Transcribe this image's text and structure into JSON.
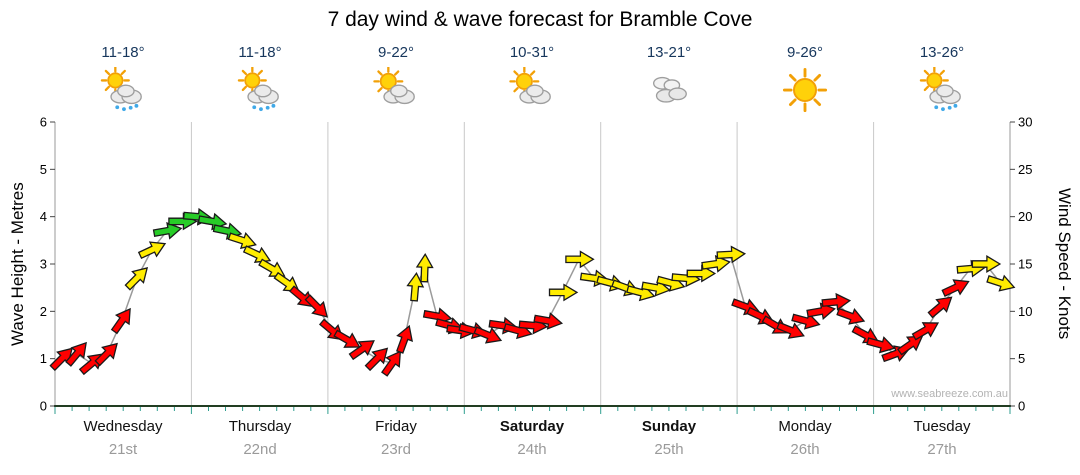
{
  "title": "7 day wind & wave forecast for Bramble Cove",
  "watermark": "www.seabreeze.com.au",
  "axes": {
    "left_label": "Wave Height - Metres",
    "right_label": "Wind Speed - Knots"
  },
  "days": [
    {
      "name": "Wednesday",
      "date": "21st",
      "temp": "11-18°",
      "icon": "sun-cloud-rain",
      "bold": false
    },
    {
      "name": "Thursday",
      "date": "22nd",
      "temp": "11-18°",
      "icon": "sun-cloud-rain",
      "bold": false
    },
    {
      "name": "Friday",
      "date": "23rd",
      "temp": "9-22°",
      "icon": "sun-cloud",
      "bold": false
    },
    {
      "name": "Saturday",
      "date": "24th",
      "temp": "10-31°",
      "icon": "sun-cloud",
      "bold": true
    },
    {
      "name": "Sunday",
      "date": "25th",
      "temp": "13-21°",
      "icon": "cloud",
      "bold": true
    },
    {
      "name": "Monday",
      "date": "26th",
      "temp": "9-26°",
      "icon": "sun",
      "bold": false
    },
    {
      "name": "Tuesday",
      "date": "27th",
      "temp": "13-26°",
      "icon": "sun-cloud-rain",
      "bold": false
    }
  ],
  "chart_data": {
    "type": "line",
    "title": "7 day wind & wave forecast for Bramble Cove",
    "x_axis": "time across 7 days, arrows approximately 3-hourly; d = day offset from start of Wednesday",
    "y_left": {
      "label": "Wave Height - Metres",
      "range": [
        0,
        6
      ],
      "ticks": [
        0,
        1,
        2,
        3,
        4,
        5,
        6
      ]
    },
    "y_right": {
      "label": "Wind Speed - Knots",
      "range": [
        0,
        30
      ],
      "ticks": [
        0,
        5,
        10,
        15,
        20,
        25,
        30
      ]
    },
    "scale_relation": "single trace read against both axes; 1 metre aligns with 5 knots",
    "rot_convention": "arrow heading in degrees clockwise from pointing right (east); negative = upward",
    "wind_strength_colors": {
      "red": "#ff0000",
      "yellow": "#ffec00",
      "green": "#27cc27"
    },
    "line_color": "#9a9a9a",
    "grid_color": "#c8c8c8",
    "points": [
      {
        "d": 0.05,
        "kn": 5,
        "c": "red",
        "rot": -45
      },
      {
        "d": 0.16,
        "kn": 5.5,
        "c": "red",
        "rot": -50
      },
      {
        "d": 0.27,
        "kn": 4.5,
        "c": "red",
        "rot": -40
      },
      {
        "d": 0.38,
        "kn": 5.5,
        "c": "red",
        "rot": -45
      },
      {
        "d": 0.49,
        "kn": 9,
        "c": "red",
        "rot": -55
      },
      {
        "d": 0.6,
        "kn": 13.5,
        "c": "yellow",
        "rot": -45
      },
      {
        "d": 0.71,
        "kn": 16.5,
        "c": "yellow",
        "rot": -25
      },
      {
        "d": 0.82,
        "kn": 18.5,
        "c": "green",
        "rot": -10
      },
      {
        "d": 0.93,
        "kn": 19.5,
        "c": "green",
        "rot": 0
      },
      {
        "d": 1.04,
        "kn": 20,
        "c": "green",
        "rot": 5
      },
      {
        "d": 1.15,
        "kn": 19.5,
        "c": "green",
        "rot": 10
      },
      {
        "d": 1.26,
        "kn": 18.5,
        "c": "green",
        "rot": 12
      },
      {
        "d": 1.37,
        "kn": 17.5,
        "c": "yellow",
        "rot": 18
      },
      {
        "d": 1.48,
        "kn": 16,
        "c": "yellow",
        "rot": 25
      },
      {
        "d": 1.59,
        "kn": 14.5,
        "c": "yellow",
        "rot": 30
      },
      {
        "d": 1.7,
        "kn": 13,
        "c": "yellow",
        "rot": 35
      },
      {
        "d": 1.81,
        "kn": 11.5,
        "c": "red",
        "rot": 40
      },
      {
        "d": 1.92,
        "kn": 10.5,
        "c": "red",
        "rot": 45
      },
      {
        "d": 2.03,
        "kn": 8,
        "c": "red",
        "rot": 40
      },
      {
        "d": 2.14,
        "kn": 7,
        "c": "red",
        "rot": 30
      },
      {
        "d": 2.25,
        "kn": 6,
        "c": "red",
        "rot": -35
      },
      {
        "d": 2.36,
        "kn": 5,
        "c": "red",
        "rot": -45
      },
      {
        "d": 2.47,
        "kn": 4.5,
        "c": "red",
        "rot": -55
      },
      {
        "d": 2.56,
        "kn": 7,
        "c": "red",
        "rot": -70
      },
      {
        "d": 2.64,
        "kn": 12.5,
        "c": "yellow",
        "rot": -85
      },
      {
        "d": 2.71,
        "kn": 14.5,
        "c": "yellow",
        "rot": -88
      },
      {
        "d": 2.8,
        "kn": 9.5,
        "c": "red",
        "rot": 10
      },
      {
        "d": 2.89,
        "kn": 8.5,
        "c": "red",
        "rot": 15
      },
      {
        "d": 2.97,
        "kn": 8,
        "c": "red",
        "rot": 8
      },
      {
        "d": 3.06,
        "kn": 8,
        "c": "red",
        "rot": 15
      },
      {
        "d": 3.17,
        "kn": 7.5,
        "c": "red",
        "rot": 22
      },
      {
        "d": 3.28,
        "kn": 8.5,
        "c": "red",
        "rot": 8
      },
      {
        "d": 3.39,
        "kn": 8,
        "c": "red",
        "rot": 15
      },
      {
        "d": 3.5,
        "kn": 8.5,
        "c": "red",
        "rot": 5
      },
      {
        "d": 3.61,
        "kn": 9,
        "c": "red",
        "rot": 10
      },
      {
        "d": 3.72,
        "kn": 12,
        "c": "yellow",
        "rot": 0
      },
      {
        "d": 3.84,
        "kn": 15.5,
        "c": "yellow",
        "rot": 0
      },
      {
        "d": 3.95,
        "kn": 13.5,
        "c": "yellow",
        "rot": 8
      },
      {
        "d": 4.07,
        "kn": 13,
        "c": "yellow",
        "rot": 15
      },
      {
        "d": 4.18,
        "kn": 12.5,
        "c": "yellow",
        "rot": 20
      },
      {
        "d": 4.29,
        "kn": 12,
        "c": "yellow",
        "rot": 15
      },
      {
        "d": 4.4,
        "kn": 12.5,
        "c": "yellow",
        "rot": 10
      },
      {
        "d": 4.51,
        "kn": 13,
        "c": "yellow",
        "rot": 15
      },
      {
        "d": 4.62,
        "kn": 13.5,
        "c": "yellow",
        "rot": 5
      },
      {
        "d": 4.73,
        "kn": 14,
        "c": "yellow",
        "rot": 0
      },
      {
        "d": 4.84,
        "kn": 15,
        "c": "yellow",
        "rot": -8
      },
      {
        "d": 4.95,
        "kn": 16,
        "c": "yellow",
        "rot": -3
      },
      {
        "d": 5.06,
        "kn": 10.5,
        "c": "red",
        "rot": 20
      },
      {
        "d": 5.17,
        "kn": 9.5,
        "c": "red",
        "rot": 25
      },
      {
        "d": 5.28,
        "kn": 8.5,
        "c": "red",
        "rot": 30
      },
      {
        "d": 5.39,
        "kn": 8,
        "c": "red",
        "rot": 22
      },
      {
        "d": 5.5,
        "kn": 9,
        "c": "red",
        "rot": 15
      },
      {
        "d": 5.61,
        "kn": 10,
        "c": "red",
        "rot": -10
      },
      {
        "d": 5.72,
        "kn": 11,
        "c": "red",
        "rot": -5
      },
      {
        "d": 5.83,
        "kn": 9.5,
        "c": "red",
        "rot": 20
      },
      {
        "d": 5.94,
        "kn": 7.5,
        "c": "red",
        "rot": 28
      },
      {
        "d": 6.05,
        "kn": 6.5,
        "c": "red",
        "rot": 15
      },
      {
        "d": 6.16,
        "kn": 5.5,
        "c": "red",
        "rot": -20
      },
      {
        "d": 6.27,
        "kn": 6.5,
        "c": "red",
        "rot": -35
      },
      {
        "d": 6.38,
        "kn": 8,
        "c": "red",
        "rot": -30
      },
      {
        "d": 6.49,
        "kn": 10.5,
        "c": "red",
        "rot": -40
      },
      {
        "d": 6.6,
        "kn": 12.5,
        "c": "red",
        "rot": -25
      },
      {
        "d": 6.71,
        "kn": 14.5,
        "c": "yellow",
        "rot": -5
      },
      {
        "d": 6.82,
        "kn": 15,
        "c": "yellow",
        "rot": 0
      },
      {
        "d": 6.93,
        "kn": 13,
        "c": "yellow",
        "rot": 18
      }
    ]
  }
}
